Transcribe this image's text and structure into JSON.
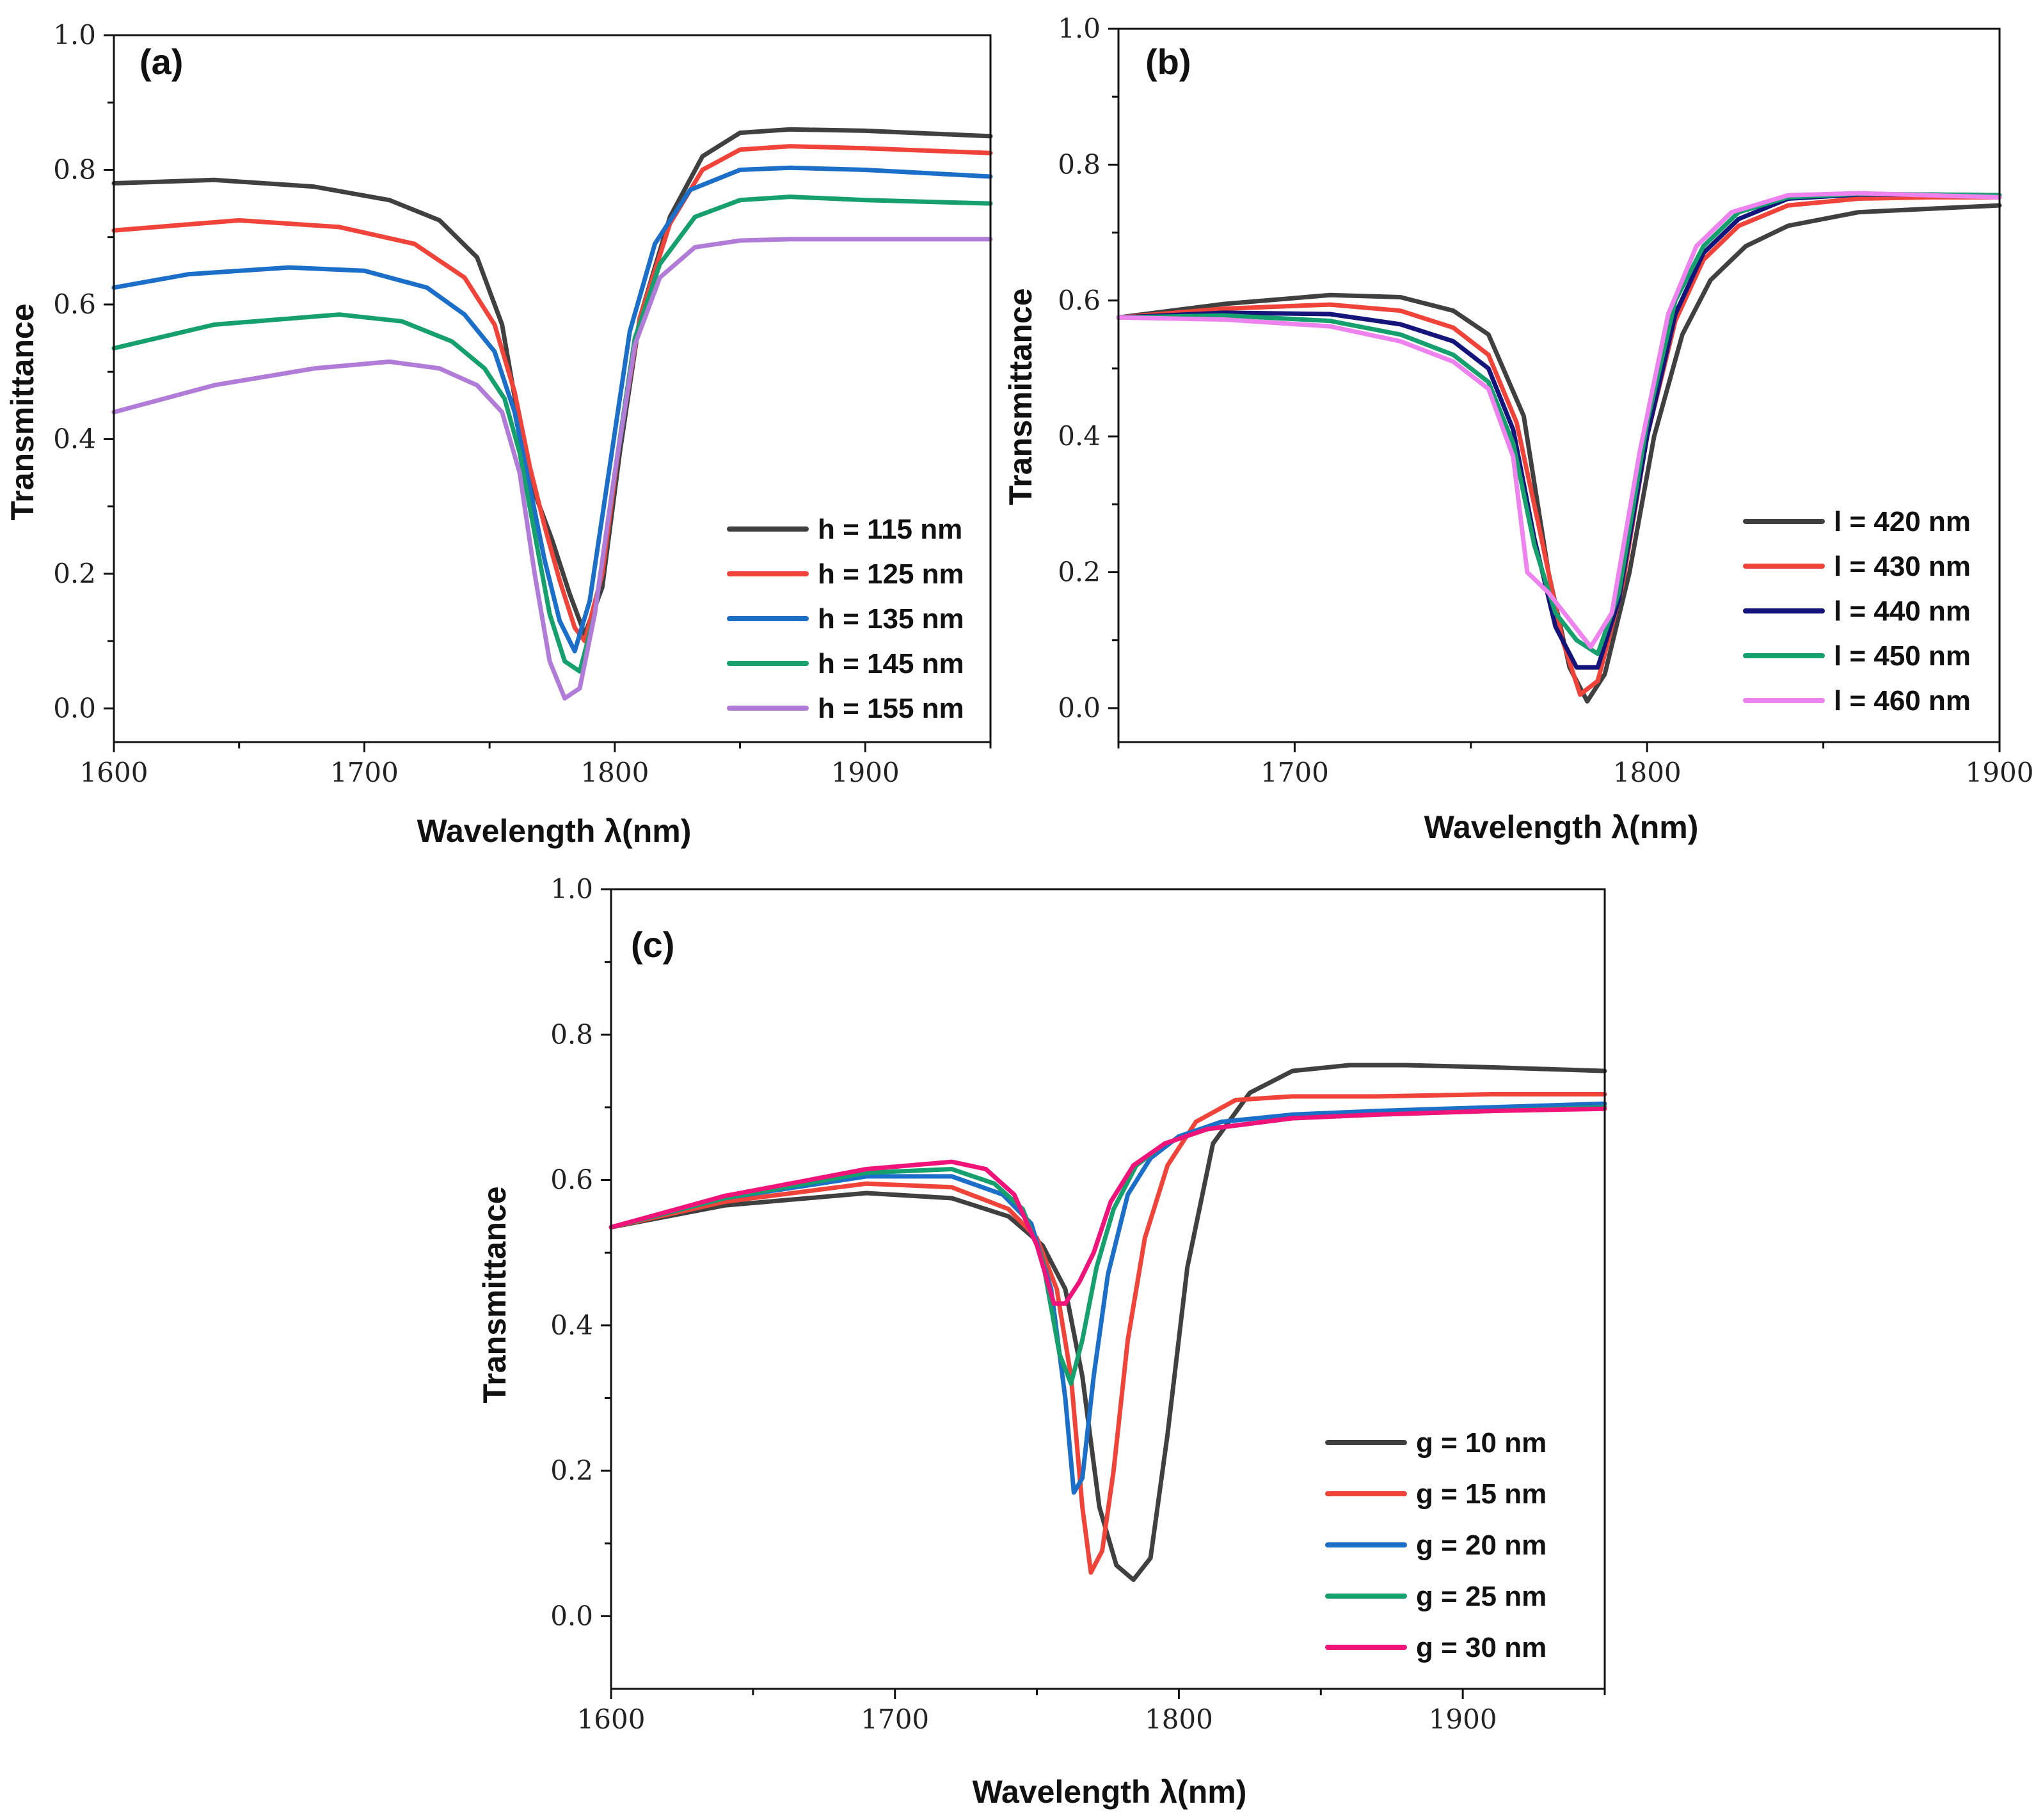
{
  "chart_data": [
    {
      "type": "line",
      "panel_label": "(a)",
      "xlabel": "Wavelength λ(nm)",
      "ylabel": "Transmittance",
      "xlim": [
        1600,
        1950
      ],
      "ylim": [
        -0.05,
        1.0
      ],
      "xticks": [
        1600,
        1700,
        1800,
        1900
      ],
      "yticks": [
        0.0,
        0.2,
        0.4,
        0.6,
        0.8,
        1.0
      ],
      "ytick_labels": [
        "0.0",
        "0.2",
        "0.4",
        "0.6",
        "0.8",
        "1.0"
      ],
      "legend_position": "bottom-right",
      "series": [
        {
          "name": "h = 115 nm",
          "color": "#404040",
          "x": [
            1600,
            1640,
            1680,
            1710,
            1730,
            1745,
            1755,
            1762,
            1768,
            1775,
            1782,
            1788,
            1795,
            1802,
            1810,
            1822,
            1835,
            1850,
            1870,
            1900,
            1950
          ],
          "y": [
            0.78,
            0.785,
            0.775,
            0.755,
            0.725,
            0.67,
            0.57,
            0.42,
            0.32,
            0.25,
            0.17,
            0.11,
            0.18,
            0.38,
            0.58,
            0.73,
            0.82,
            0.855,
            0.86,
            0.858,
            0.85
          ]
        },
        {
          "name": "h = 125 nm",
          "color": "#F0433A",
          "x": [
            1600,
            1650,
            1690,
            1720,
            1740,
            1752,
            1760,
            1766,
            1772,
            1778,
            1784,
            1788,
            1795,
            1802,
            1810,
            1822,
            1835,
            1850,
            1870,
            1900,
            1950
          ],
          "y": [
            0.71,
            0.725,
            0.715,
            0.69,
            0.64,
            0.57,
            0.47,
            0.36,
            0.27,
            0.19,
            0.12,
            0.1,
            0.2,
            0.4,
            0.58,
            0.72,
            0.8,
            0.83,
            0.835,
            0.832,
            0.825
          ]
        },
        {
          "name": "h = 135 nm",
          "color": "#1B6FC8",
          "x": [
            1600,
            1630,
            1670,
            1700,
            1725,
            1740,
            1752,
            1760,
            1766,
            1772,
            1778,
            1784,
            1790,
            1798,
            1806,
            1816,
            1830,
            1850,
            1870,
            1900,
            1950
          ],
          "y": [
            0.625,
            0.645,
            0.655,
            0.65,
            0.625,
            0.585,
            0.53,
            0.44,
            0.33,
            0.22,
            0.13,
            0.085,
            0.16,
            0.36,
            0.56,
            0.69,
            0.77,
            0.8,
            0.803,
            0.8,
            0.79
          ]
        },
        {
          "name": "h = 145 nm",
          "color": "#16A06E",
          "x": [
            1600,
            1640,
            1690,
            1715,
            1735,
            1748,
            1756,
            1762,
            1768,
            1774,
            1780,
            1786,
            1792,
            1800,
            1808,
            1818,
            1832,
            1850,
            1870,
            1900,
            1950
          ],
          "y": [
            0.535,
            0.57,
            0.585,
            0.575,
            0.545,
            0.505,
            0.46,
            0.38,
            0.26,
            0.14,
            0.07,
            0.055,
            0.14,
            0.35,
            0.55,
            0.66,
            0.73,
            0.755,
            0.76,
            0.755,
            0.75
          ]
        },
        {
          "name": "h = 155 nm",
          "color": "#B07CD8",
          "x": [
            1600,
            1640,
            1680,
            1710,
            1730,
            1745,
            1755,
            1762,
            1768,
            1774,
            1780,
            1786,
            1792,
            1800,
            1808,
            1818,
            1832,
            1850,
            1870,
            1900,
            1950
          ],
          "y": [
            0.44,
            0.48,
            0.505,
            0.515,
            0.505,
            0.48,
            0.44,
            0.35,
            0.2,
            0.07,
            0.015,
            0.03,
            0.14,
            0.35,
            0.54,
            0.64,
            0.685,
            0.695,
            0.697,
            0.697,
            0.697
          ]
        }
      ]
    },
    {
      "type": "line",
      "panel_label": "(b)",
      "xlabel": "Wavelength λ(nm)",
      "ylabel": "Transmittance",
      "xlim": [
        1650,
        1900
      ],
      "ylim": [
        -0.05,
        1.0
      ],
      "xticks": [
        1700,
        1800,
        1900
      ],
      "yticks": [
        0.0,
        0.2,
        0.4,
        0.6,
        0.8,
        1.0
      ],
      "ytick_labels": [
        "0.0",
        "0.2",
        "0.4",
        "0.6",
        "0.8",
        "1.0"
      ],
      "legend_position": "bottom-right",
      "series": [
        {
          "name": "l = 420 nm",
          "color": "#404040",
          "x": [
            1650,
            1680,
            1710,
            1730,
            1745,
            1755,
            1765,
            1772,
            1778,
            1783,
            1788,
            1795,
            1802,
            1810,
            1818,
            1828,
            1840,
            1860,
            1880,
            1900
          ],
          "y": [
            0.575,
            0.595,
            0.608,
            0.605,
            0.585,
            0.55,
            0.43,
            0.2,
            0.06,
            0.01,
            0.05,
            0.2,
            0.4,
            0.55,
            0.63,
            0.68,
            0.71,
            0.73,
            0.735,
            0.74
          ]
        },
        {
          "name": "l = 430 nm",
          "color": "#F0433A",
          "x": [
            1650,
            1680,
            1710,
            1730,
            1745,
            1755,
            1763,
            1770,
            1776,
            1781,
            1786,
            1793,
            1800,
            1808,
            1816,
            1826,
            1840,
            1860,
            1880,
            1900
          ],
          "y": [
            0.575,
            0.588,
            0.594,
            0.585,
            0.56,
            0.52,
            0.42,
            0.25,
            0.1,
            0.02,
            0.04,
            0.18,
            0.4,
            0.57,
            0.66,
            0.71,
            0.74,
            0.75,
            0.752,
            0.752
          ]
        },
        {
          "name": "l = 440 nm",
          "color": "#14147A",
          "x": [
            1650,
            1680,
            1710,
            1730,
            1745,
            1755,
            1762,
            1768,
            1774,
            1780,
            1786,
            1792,
            1800,
            1808,
            1816,
            1826,
            1840,
            1860,
            1880,
            1900
          ],
          "y": [
            0.575,
            0.582,
            0.58,
            0.565,
            0.54,
            0.5,
            0.41,
            0.25,
            0.12,
            0.06,
            0.06,
            0.16,
            0.4,
            0.58,
            0.67,
            0.72,
            0.75,
            0.756,
            0.756,
            0.755
          ]
        },
        {
          "name": "l = 450 nm",
          "color": "#16A06E",
          "x": [
            1650,
            1680,
            1710,
            1730,
            1745,
            1755,
            1762,
            1768,
            1774,
            1780,
            1786,
            1792,
            1800,
            1808,
            1816,
            1826,
            1840,
            1860,
            1880,
            1900
          ],
          "y": [
            0.575,
            0.578,
            0.57,
            0.55,
            0.52,
            0.48,
            0.39,
            0.24,
            0.14,
            0.1,
            0.08,
            0.17,
            0.42,
            0.6,
            0.68,
            0.73,
            0.752,
            0.757,
            0.756,
            0.755
          ]
        },
        {
          "name": "l = 460 nm",
          "color": "#EE82EE",
          "x": [
            1650,
            1680,
            1710,
            1730,
            1745,
            1755,
            1762,
            1766,
            1772,
            1778,
            1784,
            1790,
            1798,
            1806,
            1814,
            1824,
            1840,
            1860,
            1880,
            1900
          ],
          "y": [
            0.575,
            0.572,
            0.562,
            0.54,
            0.51,
            0.47,
            0.37,
            0.2,
            0.17,
            0.13,
            0.09,
            0.14,
            0.38,
            0.58,
            0.68,
            0.73,
            0.755,
            0.758,
            0.755,
            0.752
          ]
        }
      ]
    },
    {
      "type": "line",
      "panel_label": "(c)",
      "xlabel": "Wavelength λ(nm)",
      "ylabel": "Transmittance",
      "xlim": [
        1600,
        1950
      ],
      "ylim": [
        -0.1,
        1.0
      ],
      "xticks": [
        1600,
        1700,
        1800,
        1900
      ],
      "yticks": [
        0.0,
        0.2,
        0.4,
        0.6,
        0.8,
        1.0
      ],
      "ytick_labels": [
        "0.0",
        "0.2",
        "0.4",
        "0.6",
        "0.8",
        "1.0"
      ],
      "legend_position": "bottom-right",
      "series": [
        {
          "name": "g = 10 nm",
          "color": "#404040",
          "x": [
            1600,
            1640,
            1690,
            1720,
            1740,
            1752,
            1760,
            1766,
            1772,
            1778,
            1784,
            1790,
            1796,
            1803,
            1812,
            1825,
            1840,
            1860,
            1880,
            1910,
            1950
          ],
          "y": [
            0.535,
            0.565,
            0.582,
            0.575,
            0.55,
            0.51,
            0.45,
            0.33,
            0.15,
            0.07,
            0.05,
            0.08,
            0.25,
            0.48,
            0.65,
            0.72,
            0.75,
            0.758,
            0.758,
            0.755,
            0.75
          ]
        },
        {
          "name": "g = 15 nm",
          "color": "#F0433A",
          "x": [
            1600,
            1640,
            1690,
            1720,
            1740,
            1750,
            1757,
            1762,
            1766,
            1769,
            1773,
            1777,
            1782,
            1788,
            1796,
            1806,
            1820,
            1840,
            1870,
            1910,
            1950
          ],
          "y": [
            0.535,
            0.57,
            0.595,
            0.59,
            0.56,
            0.52,
            0.45,
            0.33,
            0.15,
            0.06,
            0.09,
            0.2,
            0.38,
            0.52,
            0.62,
            0.68,
            0.71,
            0.715,
            0.715,
            0.718,
            0.718
          ]
        },
        {
          "name": "g = 20 nm",
          "color": "#1B6FC8",
          "x": [
            1600,
            1640,
            1690,
            1720,
            1738,
            1748,
            1755,
            1760,
            1763,
            1766,
            1770,
            1775,
            1782,
            1790,
            1800,
            1815,
            1840,
            1870,
            1910,
            1950
          ],
          "y": [
            0.535,
            0.575,
            0.605,
            0.605,
            0.58,
            0.54,
            0.45,
            0.3,
            0.17,
            0.19,
            0.33,
            0.47,
            0.58,
            0.63,
            0.66,
            0.68,
            0.69,
            0.695,
            0.7,
            0.705
          ]
        },
        {
          "name": "g = 25 nm",
          "color": "#16A06E",
          "x": [
            1600,
            1640,
            1690,
            1720,
            1735,
            1745,
            1752,
            1758,
            1762,
            1766,
            1771,
            1777,
            1785,
            1795,
            1810,
            1840,
            1870,
            1910,
            1950
          ],
          "y": [
            0.535,
            0.575,
            0.61,
            0.615,
            0.595,
            0.56,
            0.49,
            0.36,
            0.32,
            0.38,
            0.48,
            0.56,
            0.62,
            0.65,
            0.67,
            0.685,
            0.69,
            0.695,
            0.7
          ]
        },
        {
          "name": "g = 30 nm",
          "color": "#F0147A",
          "x": [
            1600,
            1640,
            1690,
            1720,
            1732,
            1742,
            1750,
            1756,
            1760,
            1765,
            1770,
            1776,
            1784,
            1795,
            1810,
            1840,
            1870,
            1910,
            1950
          ],
          "y": [
            0.535,
            0.578,
            0.615,
            0.625,
            0.615,
            0.58,
            0.51,
            0.43,
            0.43,
            0.46,
            0.5,
            0.57,
            0.62,
            0.65,
            0.67,
            0.685,
            0.69,
            0.695,
            0.698
          ]
        }
      ]
    }
  ]
}
